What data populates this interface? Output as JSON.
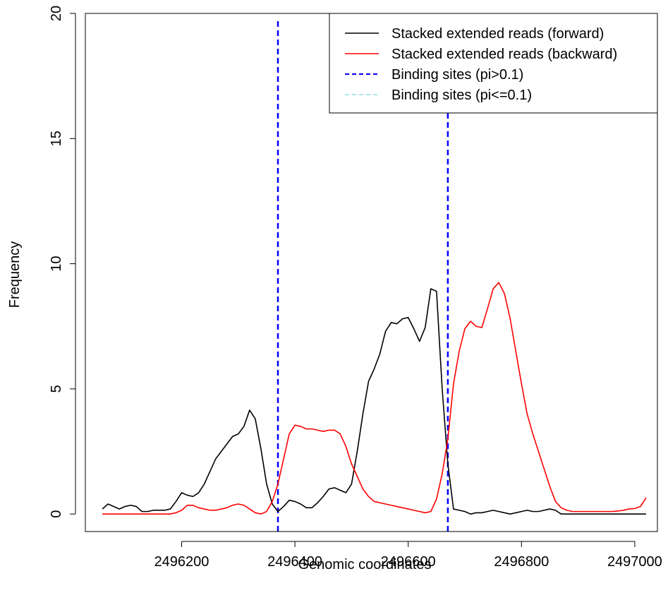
{
  "chart_data": {
    "type": "line",
    "xlabel": "Genomic coordinates",
    "ylabel": "Frequency",
    "xlim": [
      2496030,
      2497040
    ],
    "ylim": [
      -0.7,
      20
    ],
    "x_ticks": [
      2496200,
      2496400,
      2496600,
      2496800,
      2497000
    ],
    "x_tick_labels": [
      "2496200",
      "2496400",
      "2496600",
      "2496800",
      "2497000"
    ],
    "y_ticks": [
      0,
      5,
      10,
      15,
      20
    ],
    "y_tick_labels": [
      "0",
      "5",
      "10",
      "15",
      "20"
    ],
    "grid": false,
    "legend_position": "top-right",
    "legend": [
      {
        "label": "Stacked extended reads (forward)",
        "color": "#000000",
        "style": "solid"
      },
      {
        "label": "Stacked extended reads (backward)",
        "color": "#ff0000",
        "style": "solid"
      },
      {
        "label": "Binding sites (pi>0.1)",
        "color": "#0000ff",
        "style": "dashed"
      },
      {
        "label": "Binding sites (pi<=0.1)",
        "color": "#aee8e8",
        "style": "dashed"
      }
    ],
    "series": [
      {
        "name": "Stacked extended reads (forward)",
        "color": "#000000",
        "x": [
          2496060,
          2496070,
          2496080,
          2496090,
          2496100,
          2496110,
          2496120,
          2496130,
          2496140,
          2496150,
          2496160,
          2496170,
          2496180,
          2496190,
          2496200,
          2496210,
          2496220,
          2496230,
          2496240,
          2496250,
          2496260,
          2496270,
          2496280,
          2496290,
          2496300,
          2496310,
          2496320,
          2496330,
          2496340,
          2496350,
          2496360,
          2496370,
          2496380,
          2496390,
          2496400,
          2496410,
          2496420,
          2496430,
          2496440,
          2496450,
          2496460,
          2496470,
          2496480,
          2496490,
          2496500,
          2496510,
          2496520,
          2496530,
          2496540,
          2496550,
          2496560,
          2496570,
          2496580,
          2496590,
          2496600,
          2496610,
          2496620,
          2496630,
          2496640,
          2496650,
          2496660,
          2496670,
          2496680,
          2496690,
          2496700,
          2496710,
          2496720,
          2496730,
          2496740,
          2496750,
          2496760,
          2496770,
          2496780,
          2496790,
          2496800,
          2496810,
          2496820,
          2496830,
          2496840,
          2496850,
          2496860,
          2496870,
          2496880,
          2496890,
          2496900,
          2496910,
          2496920,
          2496930,
          2496940,
          2496950,
          2496960,
          2496970,
          2496980,
          2496990,
          2497000,
          2497010,
          2497020
        ],
        "values": [
          0.2,
          0.4,
          0.3,
          0.2,
          0.3,
          0.35,
          0.3,
          0.1,
          0.1,
          0.15,
          0.15,
          0.15,
          0.2,
          0.5,
          0.85,
          0.75,
          0.7,
          0.85,
          1.2,
          1.7,
          2.2,
          2.5,
          2.8,
          3.1,
          3.2,
          3.5,
          4.15,
          3.8,
          2.6,
          1.2,
          0.4,
          0.1,
          0.3,
          0.55,
          0.5,
          0.4,
          0.25,
          0.25,
          0.45,
          0.7,
          1.0,
          1.05,
          0.95,
          0.85,
          1.2,
          2.5,
          4.0,
          5.3,
          5.8,
          6.4,
          7.3,
          7.65,
          7.6,
          7.8,
          7.85,
          7.4,
          6.9,
          7.45,
          9.0,
          8.9,
          5.0,
          2.0,
          0.2,
          0.15,
          0.1,
          0.0,
          0.05,
          0.05,
          0.1,
          0.15,
          0.1,
          0.05,
          0.0,
          0.05,
          0.1,
          0.15,
          0.1,
          0.1,
          0.15,
          0.2,
          0.15,
          0.0,
          0.0,
          0.0,
          0.0,
          0.0,
          0.0,
          0.0,
          0.0,
          0.0,
          0.0,
          0.0,
          0.0,
          0.0,
          0.0,
          0.0,
          0.0
        ]
      },
      {
        "name": "Stacked extended reads (backward)",
        "color": "#ff0000",
        "x": [
          2496060,
          2496070,
          2496080,
          2496090,
          2496100,
          2496110,
          2496120,
          2496130,
          2496140,
          2496150,
          2496160,
          2496170,
          2496180,
          2496190,
          2496200,
          2496210,
          2496220,
          2496230,
          2496240,
          2496250,
          2496260,
          2496270,
          2496280,
          2496290,
          2496300,
          2496310,
          2496320,
          2496330,
          2496340,
          2496350,
          2496360,
          2496370,
          2496380,
          2496390,
          2496400,
          2496410,
          2496420,
          2496430,
          2496440,
          2496450,
          2496460,
          2496470,
          2496480,
          2496490,
          2496500,
          2496510,
          2496520,
          2496530,
          2496540,
          2496550,
          2496560,
          2496570,
          2496580,
          2496590,
          2496600,
          2496610,
          2496620,
          2496630,
          2496640,
          2496650,
          2496660,
          2496670,
          2496680,
          2496690,
          2496700,
          2496710,
          2496720,
          2496730,
          2496740,
          2496750,
          2496760,
          2496770,
          2496780,
          2496790,
          2496800,
          2496810,
          2496820,
          2496830,
          2496840,
          2496850,
          2496860,
          2496870,
          2496880,
          2496890,
          2496900,
          2496910,
          2496920,
          2496930,
          2496940,
          2496950,
          2496960,
          2496970,
          2496980,
          2496990,
          2497000,
          2497010,
          2497020
        ],
        "values": [
          0.0,
          0.0,
          0.0,
          0.0,
          0.0,
          0.0,
          0.0,
          0.0,
          0.0,
          0.0,
          0.0,
          0.0,
          0.0,
          0.05,
          0.15,
          0.35,
          0.35,
          0.25,
          0.2,
          0.15,
          0.15,
          0.2,
          0.25,
          0.35,
          0.4,
          0.35,
          0.2,
          0.05,
          0.0,
          0.1,
          0.5,
          1.2,
          2.2,
          3.2,
          3.55,
          3.5,
          3.4,
          3.4,
          3.35,
          3.3,
          3.35,
          3.35,
          3.2,
          2.7,
          2.0,
          1.5,
          1.0,
          0.7,
          0.5,
          0.45,
          0.4,
          0.35,
          0.3,
          0.25,
          0.2,
          0.15,
          0.1,
          0.05,
          0.1,
          0.6,
          1.6,
          3.0,
          5.2,
          6.5,
          7.4,
          7.7,
          7.5,
          7.45,
          8.2,
          9.0,
          9.25,
          8.8,
          7.8,
          6.5,
          5.2,
          4.0,
          3.2,
          2.5,
          1.8,
          1.1,
          0.5,
          0.25,
          0.15,
          0.1,
          0.1,
          0.1,
          0.1,
          0.1,
          0.1,
          0.1,
          0.1,
          0.12,
          0.15,
          0.2,
          0.22,
          0.3,
          0.65
        ]
      }
    ],
    "vertical_lines": [
      {
        "name": "Binding sites (pi>0.1)",
        "x": 2496370,
        "color": "#0000ff",
        "style": "dashed"
      },
      {
        "name": "Binding sites (pi>0.1)",
        "x": 2496670,
        "color": "#0000ff",
        "style": "dashed"
      }
    ]
  }
}
